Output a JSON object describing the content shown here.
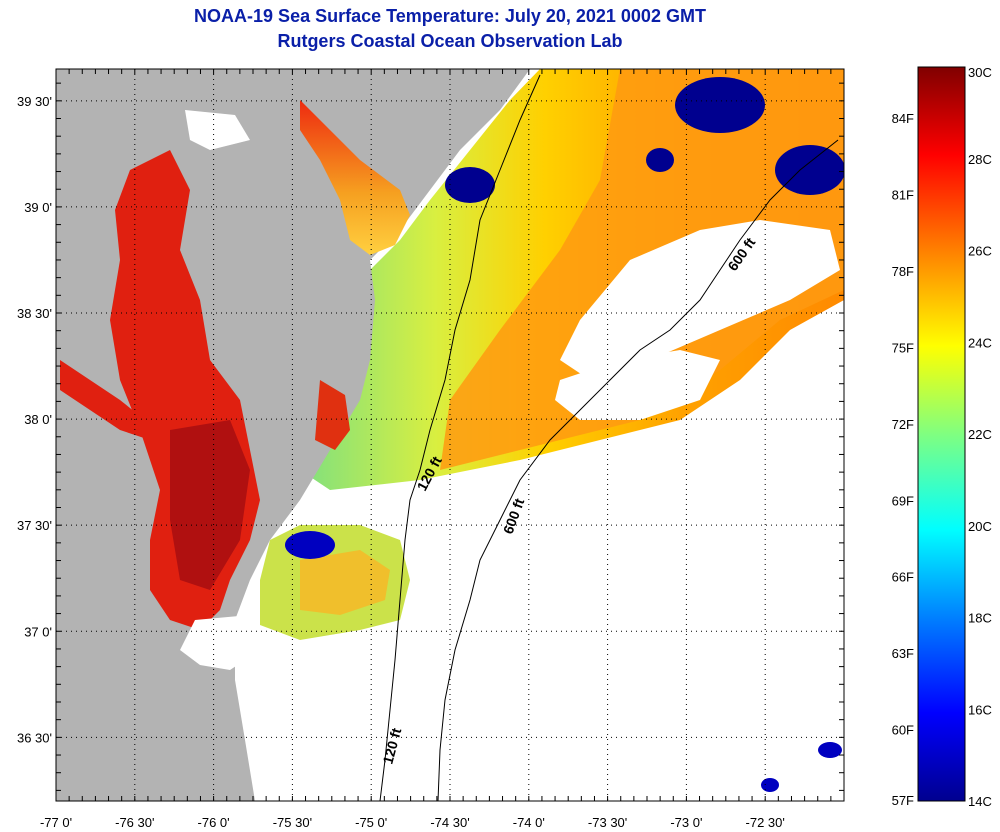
{
  "title": "NOAA-19 Sea Surface Temperature:  July 20, 2021 0002 GMT",
  "subtitle": "Rutgers Coastal Ocean Observation Lab",
  "axes": {
    "lat_labels": [
      "39 30'",
      "39 0'",
      "38 30'",
      "38 0'",
      "37 30'",
      "37 0'",
      "36 30'"
    ],
    "lon_labels": [
      "-77 0'",
      "-76 30'",
      "-76 0'",
      "-75 30'",
      "-75 0'",
      "-74 30'",
      "-74 0'",
      "-73 30'",
      "-73 0'",
      "-72 30'"
    ],
    "lat_range": [
      36.2,
      39.65
    ],
    "lon_range": [
      -77.0,
      -72.0
    ]
  },
  "contours": {
    "labels": [
      "120 ft",
      "600 ft",
      "600 ft",
      "120 ft"
    ]
  },
  "colorbar": {
    "celsius_labels": [
      "30C",
      "28C",
      "26C",
      "24C",
      "22C",
      "20C",
      "18C",
      "16C",
      "14C"
    ],
    "fahrenheit_labels": [
      "84F",
      "81F",
      "78F",
      "75F",
      "72F",
      "69F",
      "66F",
      "63F",
      "60F",
      "57F"
    ],
    "range_c": [
      14,
      30
    ],
    "colors": [
      "#00008f",
      "#0000ff",
      "#0080ff",
      "#00ffff",
      "#80ff80",
      "#ffff00",
      "#ff8000",
      "#ff0000",
      "#800000"
    ]
  },
  "map_colors": {
    "land": "#b3b3b3",
    "cloud": "#ffffff"
  }
}
